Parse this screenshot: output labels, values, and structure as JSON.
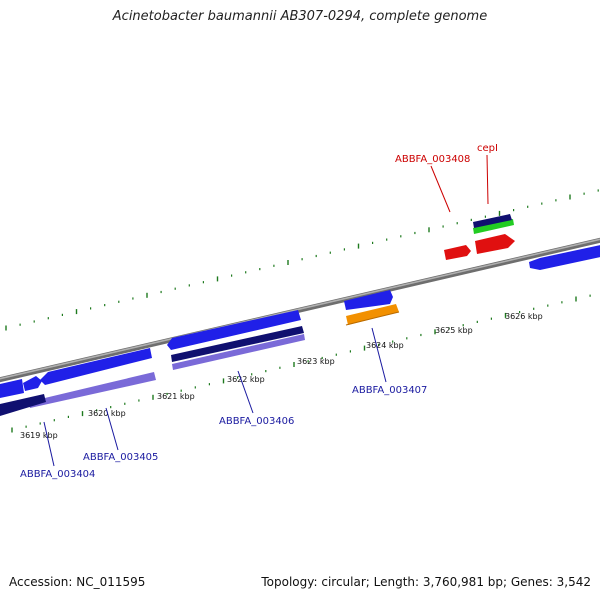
{
  "title": "Acinetobacter baumannii AB307-0294, complete genome",
  "accession": "Accession: NC_011595",
  "topology": "Topology: circular; Length: 3,760,981 bp; Genes: 3,542",
  "colors": {
    "backbone": "#888888",
    "tick": "#1e7a1e",
    "gene_blue": "#2020e8",
    "gene_navy": "#101070",
    "gene_lavender": "#7a6ad8",
    "gene_red": "#e01010",
    "gene_green": "#22cc22",
    "gene_orange": "#f29000",
    "label_blue": "#1a1aa0",
    "label_red": "#cc0000"
  },
  "kbp_labels": [
    "3619 kbp",
    "3620 kbp",
    "3621 kbp",
    "3622 kbp",
    "3623 kbp",
    "3624 kbp",
    "3625 kbp",
    "3626 kbp"
  ],
  "gene_labels": {
    "g3404": "ABBFA_003404",
    "g3405": "ABBFA_003405",
    "g3406": "ABBFA_003406",
    "g3407": "ABBFA_003407",
    "g3408": "ABBFA_003408",
    "cepI": "cepI"
  }
}
